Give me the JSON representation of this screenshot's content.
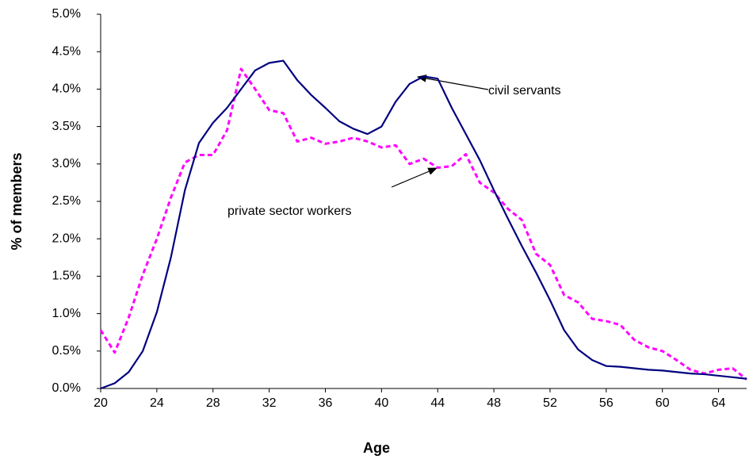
{
  "chart_data": {
    "type": "line",
    "xlabel": "Age",
    "ylabel": "% of members",
    "x": [
      20,
      21,
      22,
      23,
      24,
      25,
      26,
      27,
      28,
      29,
      30,
      31,
      32,
      33,
      34,
      35,
      36,
      37,
      38,
      39,
      40,
      41,
      42,
      43,
      44,
      45,
      46,
      47,
      48,
      49,
      50,
      51,
      52,
      53,
      54,
      55,
      56,
      57,
      58,
      59,
      60,
      61,
      62,
      63,
      64,
      65,
      66
    ],
    "series": [
      {
        "name": "civil servants",
        "color": "#000080",
        "dash": false,
        "values": [
          0.0,
          0.07,
          0.22,
          0.5,
          1.02,
          1.75,
          2.65,
          3.28,
          3.55,
          3.75,
          4.0,
          4.25,
          4.35,
          4.38,
          4.12,
          3.92,
          3.75,
          3.57,
          3.47,
          3.4,
          3.5,
          3.83,
          4.07,
          4.17,
          4.14,
          3.75,
          3.4,
          3.05,
          2.65,
          2.27,
          1.9,
          1.55,
          1.18,
          0.78,
          0.52,
          0.38,
          0.3,
          0.29,
          0.27,
          0.25,
          0.24,
          0.22,
          0.2,
          0.19,
          0.17,
          0.15,
          0.13
        ]
      },
      {
        "name": "private sector workers",
        "color": "#ff00ff",
        "dash": true,
        "values": [
          0.78,
          0.48,
          0.95,
          1.52,
          2.0,
          2.55,
          3.02,
          3.12,
          3.12,
          3.45,
          4.27,
          4.0,
          3.72,
          3.68,
          3.3,
          3.35,
          3.27,
          3.3,
          3.35,
          3.3,
          3.22,
          3.25,
          3.0,
          3.07,
          2.95,
          2.97,
          3.13,
          2.75,
          2.62,
          2.4,
          2.25,
          1.8,
          1.65,
          1.25,
          1.15,
          0.93,
          0.9,
          0.85,
          0.65,
          0.55,
          0.5,
          0.38,
          0.25,
          0.2,
          0.25,
          0.27,
          0.12
        ]
      }
    ],
    "xlim": [
      20,
      66
    ],
    "xticks": [
      20,
      24,
      28,
      32,
      36,
      40,
      44,
      48,
      52,
      56,
      60,
      64
    ],
    "ylim": [
      0,
      5
    ],
    "yticks": [
      {
        "value": 0,
        "label": "0.0%"
      },
      {
        "value": 0.5,
        "label": "0.5%"
      },
      {
        "value": 1,
        "label": "1.0%"
      },
      {
        "value": 1.5,
        "label": "1.5%"
      },
      {
        "value": 2,
        "label": "2.0%"
      },
      {
        "value": 2.5,
        "label": "2.5%"
      },
      {
        "value": 3,
        "label": "3.0%"
      },
      {
        "value": 3.5,
        "label": "3.5%"
      },
      {
        "value": 4,
        "label": "4.0%"
      },
      {
        "value": 4.5,
        "label": "4.5%"
      },
      {
        "value": 5,
        "label": "5.0%"
      }
    ],
    "grid": false
  }
}
